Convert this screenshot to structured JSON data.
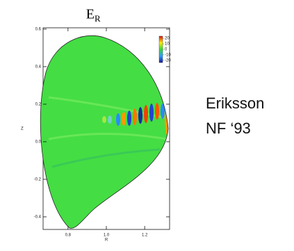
{
  "chart_data": {
    "type": "contour",
    "title": {
      "main": "E",
      "sub": "R"
    },
    "x_label": "R",
    "y_label": "Z",
    "xlim": [
      0.67,
      1.33
    ],
    "xticks": [
      0.8,
      {
        "value": 1,
        "label": "1.0"
      },
      1.2
    ],
    "ylim": [
      -0.467,
      0.607
    ],
    "yticks": [
      0.6,
      0.4,
      0.2,
      {
        "value": 0,
        "label": "0.0"
      },
      -0.2,
      -0.4
    ],
    "colorbar": {
      "clim": [
        -24,
        24
      ],
      "ticks": [
        20,
        10,
        0,
        -10,
        -20
      ]
    },
    "annotation": [
      "Eriksson",
      "NF ‘93"
    ]
  }
}
